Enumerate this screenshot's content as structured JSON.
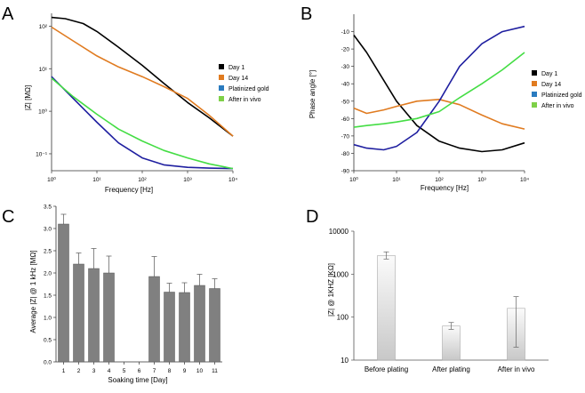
{
  "chart_data": [
    {
      "panel": "A",
      "type": "line",
      "xscale": "log",
      "yscale": "log",
      "xlabel": "Frequency [Hz]",
      "ylabel": "|Z| [MΩ]",
      "xlim": [
        1,
        10000
      ],
      "ylim": [
        0.04,
        200
      ],
      "xticks": [
        {
          "v": 1,
          "l": "10⁰"
        },
        {
          "v": 10,
          "l": "10¹"
        },
        {
          "v": 100,
          "l": "10²"
        },
        {
          "v": 1000,
          "l": "10³"
        },
        {
          "v": 10000,
          "l": "10⁴"
        }
      ],
      "yticks": [
        {
          "v": 0.1,
          "l": "10⁻¹"
        },
        {
          "v": 1,
          "l": "10⁰"
        },
        {
          "v": 10,
          "l": "10¹"
        },
        {
          "v": 100,
          "l": "10²"
        }
      ],
      "series": [
        {
          "name": "Day 1",
          "color": "#000000",
          "x": [
            1,
            2,
            5,
            10,
            30,
            100,
            300,
            1000,
            3000,
            10000
          ],
          "y": [
            160,
            150,
            115,
            75,
            32,
            12,
            4.5,
            1.6,
            0.7,
            0.26
          ]
        },
        {
          "name": "Day 14",
          "color": "#e07b20",
          "x": [
            1,
            3,
            10,
            30,
            100,
            300,
            1000,
            3000,
            10000
          ],
          "y": [
            95,
            45,
            20,
            11,
            6.5,
            3.8,
            2,
            0.8,
            0.26
          ]
        },
        {
          "name": "Platinized gold",
          "color": "#1f1fa0",
          "x": [
            1,
            3,
            10,
            30,
            100,
            300,
            1000,
            3000,
            10000
          ],
          "y": [
            6.5,
            2,
            0.55,
            0.18,
            0.08,
            0.055,
            0.048,
            0.046,
            0.045
          ]
        },
        {
          "name": "After in vivo",
          "color": "#44dd44",
          "x": [
            1,
            3,
            10,
            30,
            100,
            300,
            1000,
            3000,
            10000
          ],
          "y": [
            6,
            2.2,
            0.85,
            0.38,
            0.2,
            0.12,
            0.08,
            0.058,
            0.045
          ]
        }
      ]
    },
    {
      "panel": "B",
      "type": "line",
      "xscale": "log",
      "xlabel": "Frequency [Hz]",
      "ylabel": "Phase angle [°]",
      "xlim": [
        1,
        10000
      ],
      "ylim": [
        -90,
        0
      ],
      "xticks": [
        {
          "v": 1,
          "l": "10⁰"
        },
        {
          "v": 10,
          "l": "10¹"
        },
        {
          "v": 100,
          "l": "10²"
        },
        {
          "v": 1000,
          "l": "10³"
        },
        {
          "v": 10000,
          "l": "10⁴"
        }
      ],
      "yticks": [
        {
          "v": -10,
          "l": "-10"
        },
        {
          "v": -20,
          "l": "-20"
        },
        {
          "v": -30,
          "l": "-30"
        },
        {
          "v": -40,
          "l": "-40"
        },
        {
          "v": -50,
          "l": "-50"
        },
        {
          "v": -60,
          "l": "-60"
        },
        {
          "v": -70,
          "l": "-70"
        },
        {
          "v": -80,
          "l": "-80"
        },
        {
          "v": -90,
          "l": "-90"
        }
      ],
      "series": [
        {
          "name": "Day 1",
          "color": "#000000",
          "x": [
            1,
            2,
            5,
            10,
            30,
            100,
            300,
            1000,
            3000,
            10000
          ],
          "y": [
            -12,
            -22,
            -38,
            -50,
            -64,
            -73,
            -77,
            -79,
            -78,
            -74
          ]
        },
        {
          "name": "Day 14",
          "color": "#e07b20",
          "x": [
            1,
            2,
            5,
            10,
            30,
            100,
            300,
            1000,
            3000,
            10000
          ],
          "y": [
            -54,
            -57,
            -55,
            -53,
            -50,
            -49,
            -52,
            -58,
            -63,
            -66
          ]
        },
        {
          "name": "Platinized gold",
          "color": "#1f1fa0",
          "x": [
            1,
            2,
            5,
            10,
            30,
            100,
            300,
            1000,
            3000,
            10000
          ],
          "y": [
            -75,
            -77,
            -78,
            -76,
            -68,
            -50,
            -30,
            -17,
            -10,
            -7
          ]
        },
        {
          "name": "After in vivo",
          "color": "#44dd44",
          "x": [
            1,
            2,
            5,
            10,
            30,
            100,
            300,
            1000,
            3000,
            10000
          ],
          "y": [
            -65,
            -64,
            -63,
            -62,
            -60,
            -56,
            -48,
            -40,
            -32,
            -22
          ]
        }
      ]
    },
    {
      "panel": "C",
      "type": "bar",
      "xlabel": "Soaking time [Day]",
      "ylabel": "Average |Z| @ 1 kHz [MΩ]",
      "categories": [
        "1",
        "2",
        "3",
        "4",
        "5",
        "6",
        "7",
        "8",
        "9",
        "10",
        "11"
      ],
      "values": [
        3.1,
        2.2,
        2.1,
        2.0,
        null,
        null,
        1.92,
        1.57,
        1.56,
        1.72,
        1.65
      ],
      "errors": [
        0.22,
        0.25,
        0.45,
        0.38,
        null,
        null,
        0.45,
        0.2,
        0.22,
        0.25,
        0.22
      ],
      "ylim": [
        0,
        3.5
      ],
      "yticks": [
        "0.0",
        "0.5",
        "1.0",
        "1.5",
        "2.0",
        "2.5",
        "3.0",
        "3.5"
      ]
    },
    {
      "panel": "D",
      "type": "bar",
      "yscale": "log",
      "xlabel": "",
      "ylabel": "|Z| @ 1KHZ [KΩ]",
      "categories": [
        "Before plating",
        "After plating",
        "After in vivo"
      ],
      "values": [
        2700,
        62,
        160
      ],
      "error_low": [
        2250,
        52,
        20
      ],
      "error_high": [
        3300,
        75,
        300
      ],
      "ylim": [
        10,
        10000
      ],
      "yticks": [
        "10",
        "100",
        "1000",
        "10000"
      ]
    }
  ],
  "legend": {
    "entries": [
      {
        "name": "Day 1",
        "color": "#000000"
      },
      {
        "name": "Day 14",
        "color": "#e07b20"
      },
      {
        "name": "Platinized gold",
        "color": "#2a7bbf"
      },
      {
        "name": "After in vivo",
        "color": "#7ed048"
      }
    ]
  },
  "panel_labels": [
    "A",
    "B",
    "C",
    "D"
  ]
}
